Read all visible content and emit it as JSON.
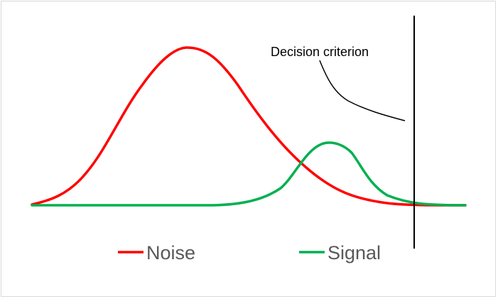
{
  "annotation": {
    "label": "Decision criterion"
  },
  "legend": [
    {
      "name": "Noise",
      "color": "#ff0000"
    },
    {
      "name": "Signal",
      "color": "#00b050"
    }
  ],
  "colors": {
    "criterion_line": "#000000",
    "border": "#d9d9d9",
    "legend_text": "#595959"
  }
}
